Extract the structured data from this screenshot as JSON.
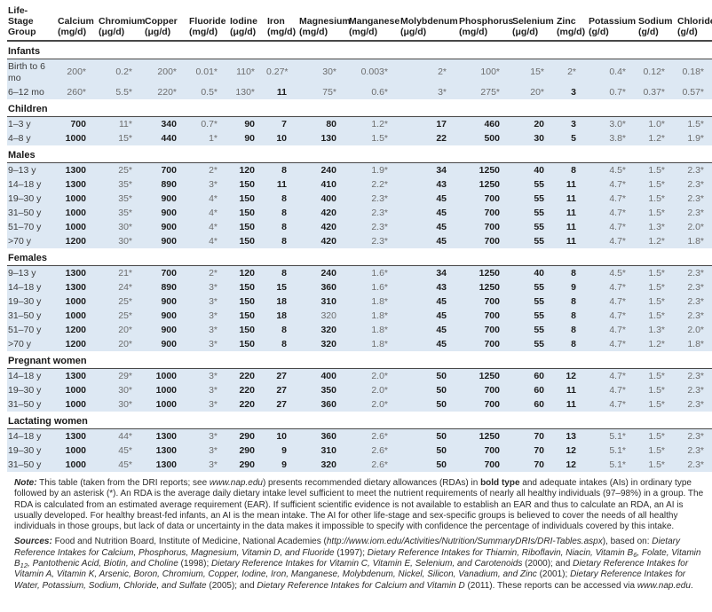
{
  "table": {
    "row_header": {
      "lines": [
        "Life-",
        "Stage",
        "Group"
      ]
    },
    "columns": [
      {
        "name": "Calcium",
        "unit": "(mg/d)"
      },
      {
        "name": "Chromium",
        "unit": "(μg/d)"
      },
      {
        "name": "Copper",
        "unit": "(μg/d)"
      },
      {
        "name": "Fluoride",
        "unit": "(mg/d)"
      },
      {
        "name": "Iodine",
        "unit": "(μg/d)"
      },
      {
        "name": "Iron",
        "unit": "(mg/d)"
      },
      {
        "name": "Magnesium",
        "unit": "(mg/d)"
      },
      {
        "name": "Manganese",
        "unit": "(mg/d)"
      },
      {
        "name": "Molybdenum",
        "unit": "(μg/d)"
      },
      {
        "name": "Phosphorus",
        "unit": "(mg/d)"
      },
      {
        "name": "Selenium",
        "unit": "(μg/d)"
      },
      {
        "name": "Zinc",
        "unit": "(mg/d)"
      },
      {
        "name": "Potassium",
        "unit": "(g/d)"
      },
      {
        "name": "Sodium",
        "unit": "(g/d)"
      },
      {
        "name": "Chloride",
        "unit": "(g/d)"
      }
    ],
    "legend": {
      "bold_means": "RDA (recommended dietary allowance)",
      "asterisk_means": "AI (adequate intake)"
    },
    "groups": [
      {
        "label": "Infants",
        "rows": [
          {
            "label": "Birth to 6 mo",
            "values": [
              "200*",
              "0.2*",
              "200*",
              "0.01*",
              "110*",
              "0.27*",
              "30*",
              "0.003*",
              "2*",
              "100*",
              "15*",
              "2*",
              "0.4*",
              "0.12*",
              "0.18*"
            ]
          },
          {
            "label": "6–12 mo",
            "values": [
              "260*",
              "5.5*",
              "220*",
              "0.5*",
              "130*",
              "11",
              "75*",
              "0.6*",
              "3*",
              "275*",
              "20*",
              "3",
              "0.7*",
              "0.37*",
              "0.57*"
            ]
          }
        ]
      },
      {
        "label": "Children",
        "rows": [
          {
            "label": "1–3 y",
            "values": [
              "700",
              "11*",
              "340",
              "0.7*",
              "90",
              "7",
              "80",
              "1.2*",
              "17",
              "460",
              "20",
              "3",
              "3.0*",
              "1.0*",
              "1.5*"
            ]
          },
          {
            "label": "4–8 y",
            "values": [
              "1000",
              "15*",
              "440",
              "1*",
              "90",
              "10",
              "130",
              "1.5*",
              "22",
              "500",
              "30",
              "5",
              "3.8*",
              "1.2*",
              "1.9*"
            ]
          }
        ]
      },
      {
        "label": "Males",
        "rows": [
          {
            "label": "9–13 y",
            "values": [
              "1300",
              "25*",
              "700",
              "2*",
              "120",
              "8",
              "240",
              "1.9*",
              "34",
              "1250",
              "40",
              "8",
              "4.5*",
              "1.5*",
              "2.3*"
            ]
          },
          {
            "label": "14–18 y",
            "values": [
              "1300",
              "35*",
              "890",
              "3*",
              "150",
              "11",
              "410",
              "2.2*",
              "43",
              "1250",
              "55",
              "11",
              "4.7*",
              "1.5*",
              "2.3*"
            ]
          },
          {
            "label": "19–30 y",
            "values": [
              "1000",
              "35*",
              "900",
              "4*",
              "150",
              "8",
              "400",
              "2.3*",
              "45",
              "700",
              "55",
              "11",
              "4.7*",
              "1.5*",
              "2.3*"
            ]
          },
          {
            "label": "31–50 y",
            "values": [
              "1000",
              "35*",
              "900",
              "4*",
              "150",
              "8",
              "420",
              "2.3*",
              "45",
              "700",
              "55",
              "11",
              "4.7*",
              "1.5*",
              "2.3*"
            ]
          },
          {
            "label": "51–70 y",
            "values": [
              "1000",
              "30*",
              "900",
              "4*",
              "150",
              "8",
              "420",
              "2.3*",
              "45",
              "700",
              "55",
              "11",
              "4.7*",
              "1.3*",
              "2.0*"
            ]
          },
          {
            "label": ">70 y",
            "values": [
              "1200",
              "30*",
              "900",
              "4*",
              "150",
              "8",
              "420",
              "2.3*",
              "45",
              "700",
              "55",
              "11",
              "4.7*",
              "1.2*",
              "1.8*"
            ]
          }
        ]
      },
      {
        "label": "Females",
        "rows": [
          {
            "label": "9–13 y",
            "values": [
              "1300",
              "21*",
              "700",
              "2*",
              "120",
              "8",
              "240",
              "1.6*",
              "34",
              "1250",
              "40",
              "8",
              "4.5*",
              "1.5*",
              "2.3*"
            ]
          },
          {
            "label": "14–18 y",
            "values": [
              "1300",
              "24*",
              "890",
              "3*",
              "150",
              "15",
              "360",
              "1.6*",
              "43",
              "1250",
              "55",
              "9",
              "4.7*",
              "1.5*",
              "2.3*"
            ]
          },
          {
            "label": "19–30 y",
            "values": [
              "1000",
              "25*",
              "900",
              "3*",
              "150",
              "18",
              "310",
              "1.8*",
              "45",
              "700",
              "55",
              "8",
              "4.7*",
              "1.5*",
              "2.3*"
            ]
          },
          {
            "label": "31–50 y",
            "values": [
              "1000",
              "25*",
              "900",
              "3*",
              "150",
              "18",
              "320~",
              "1.8*",
              "45",
              "700",
              "55",
              "8",
              "4.7*",
              "1.5*",
              "2.3*"
            ]
          },
          {
            "label": "51–70 y",
            "values": [
              "1200",
              "20*",
              "900",
              "3*",
              "150",
              "8",
              "320",
              "1.8*",
              "45",
              "700",
              "55",
              "8",
              "4.7*",
              "1.3*",
              "2.0*"
            ]
          },
          {
            "label": ">70 y",
            "values": [
              "1200",
              "20*",
              "900",
              "3*",
              "150",
              "8",
              "320",
              "1.8*",
              "45",
              "700",
              "55",
              "8",
              "4.7*",
              "1.2*",
              "1.8*"
            ]
          }
        ]
      },
      {
        "label": "Pregnant women",
        "rows": [
          {
            "label": "14–18 y",
            "values": [
              "1300",
              "29*",
              "1000",
              "3*",
              "220",
              "27",
              "400",
              "2.0*",
              "50",
              "1250",
              "60",
              "12",
              "4.7*",
              "1.5*",
              "2.3*"
            ]
          },
          {
            "label": "19–30 y",
            "values": [
              "1000",
              "30*",
              "1000",
              "3*",
              "220",
              "27",
              "350",
              "2.0*",
              "50",
              "700",
              "60",
              "11",
              "4.7*",
              "1.5*",
              "2.3*"
            ]
          },
          {
            "label": "31–50 y",
            "values": [
              "1000",
              "30*",
              "1000",
              "3*",
              "220",
              "27",
              "360",
              "2.0*",
              "50",
              "700",
              "60",
              "11",
              "4.7*",
              "1.5*",
              "2.3*"
            ]
          }
        ]
      },
      {
        "label": "Lactating women",
        "rows": [
          {
            "label": "14–18 y",
            "values": [
              "1300",
              "44*",
              "1300",
              "3*",
              "290",
              "10",
              "360",
              "2.6*",
              "50",
              "1250",
              "70",
              "13",
              "5.1*",
              "1.5*",
              "2.3*"
            ]
          },
          {
            "label": "19–30 y",
            "values": [
              "1000",
              "45*",
              "1300",
              "3*",
              "290",
              "9",
              "310",
              "2.6*",
              "50",
              "700",
              "70",
              "12",
              "5.1*",
              "1.5*",
              "2.3*"
            ]
          },
          {
            "label": "31–50 y",
            "values": [
              "1000",
              "45*",
              "1300",
              "3*",
              "290",
              "9",
              "320",
              "2.6*",
              "50",
              "700",
              "70",
              "12",
              "5.1*",
              "1.5*",
              "2.3*"
            ]
          }
        ]
      }
    ]
  },
  "notes": {
    "note_segments": [
      {
        "t": "Note:",
        "s": "bi"
      },
      {
        "t": " This table (taken from the DRI reports; see ",
        "s": ""
      },
      {
        "t": "www.nap.edu",
        "s": "i"
      },
      {
        "t": ") presents recommended dietary allowances (RDAs) in ",
        "s": ""
      },
      {
        "t": "bold type",
        "s": "b"
      },
      {
        "t": " and adequate intakes (AIs) in ordinary type followed by an asterisk (*). An RDA is the average daily dietary intake level sufficient to meet the nutrient requirements of nearly all healthy individuals (97–98%) in a group. The RDA is calculated from an estimated average requirement (EAR). If sufficient scientific evidence is not available to establish an EAR and thus to calculate an RDA, an AI is usually developed. For healthy breast-fed infants, an AI is the mean intake. The AI for other life-stage and sex-specific groups is believed to cover the needs of all healthy individuals in those groups, but lack of data or uncertainty in the data makes it impossible to specify with confidence the percentage of individuals covered by this intake.",
        "s": ""
      }
    ],
    "sources_segments": [
      {
        "t": "Sources:",
        "s": "bi"
      },
      {
        "t": " Food and Nutrition Board, Institute of Medicine, National Academies (",
        "s": ""
      },
      {
        "t": "http://www.iom.edu/Activities/Nutrition/SummaryDRIs/DRI-Tables.aspx",
        "s": "i"
      },
      {
        "t": "), based on: ",
        "s": ""
      },
      {
        "t": "Dietary Reference Intakes for Calcium, Phosphorus, Magnesium, Vitamin D, and Fluoride",
        "s": "i"
      },
      {
        "t": " (1997); ",
        "s": ""
      },
      {
        "t": "Dietary Reference Intakes for Thiamin, Riboflavin, Niacin, Vitamin B",
        "s": "i"
      },
      {
        "t": "6",
        "s": "isub"
      },
      {
        "t": ", Folate, Vitamin B",
        "s": "i"
      },
      {
        "t": "12",
        "s": "isub"
      },
      {
        "t": ", Pantothenic Acid, Biotin, and Choline",
        "s": "i"
      },
      {
        "t": " (1998); ",
        "s": ""
      },
      {
        "t": "Dietary Reference Intakes for Vitamin C, Vitamin E, Selenium, and Carotenoids",
        "s": "i"
      },
      {
        "t": " (2000); and ",
        "s": ""
      },
      {
        "t": "Dietary Reference Intakes for Vitamin A, Vitamin K, Arsenic, Boron, Chromium, Copper, Iodine, Iron, Manganese, Molybdenum, Nickel, Silicon, Vanadium, and Zinc",
        "s": "i"
      },
      {
        "t": " (2001); ",
        "s": ""
      },
      {
        "t": "Dietary Reference Intakes for Water, Potassium, Sodium, Chloride, and Sulfate",
        "s": "i"
      },
      {
        "t": " (2005); and ",
        "s": ""
      },
      {
        "t": "Dietary Reference Intakes for Calcium and Vitamin D",
        "s": "i"
      },
      {
        "t": " (2011). These reports can be accessed via ",
        "s": ""
      },
      {
        "t": "www.nap.edu",
        "s": "i"
      },
      {
        "t": ".",
        "s": ""
      }
    ]
  },
  "colors": {
    "row_background": "#dde8f3",
    "rda_text": "#1d1d1d",
    "ai_text": "#6c6c6c",
    "rule": "#474747"
  }
}
